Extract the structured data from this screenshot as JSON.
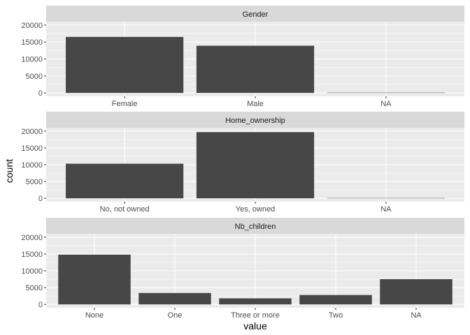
{
  "chart_data": {
    "type": "bar",
    "xlabel": "value",
    "ylabel": "count",
    "ylim": [
      0,
      20000
    ],
    "yticks": [
      0,
      5000,
      10000,
      15000,
      20000
    ],
    "grid": true,
    "colors": {
      "bar": "#474747",
      "panel_bg": "#ebebeb",
      "strip_bg": "#d9d9d9",
      "grid": "#ffffff"
    },
    "facets": [
      {
        "title": "Gender",
        "categories": [
          "Female",
          "Male",
          "NA"
        ],
        "values": [
          16500,
          13900,
          100
        ]
      },
      {
        "title": "Home_ownership",
        "categories": [
          "No, not owned",
          "Yes, owned",
          "NA"
        ],
        "values": [
          10300,
          19700,
          100
        ]
      },
      {
        "title": "Nb_children",
        "categories": [
          "None",
          "One",
          "Three or more",
          "Two",
          "NA"
        ],
        "values": [
          14800,
          3400,
          1800,
          2800,
          7500
        ]
      }
    ]
  }
}
